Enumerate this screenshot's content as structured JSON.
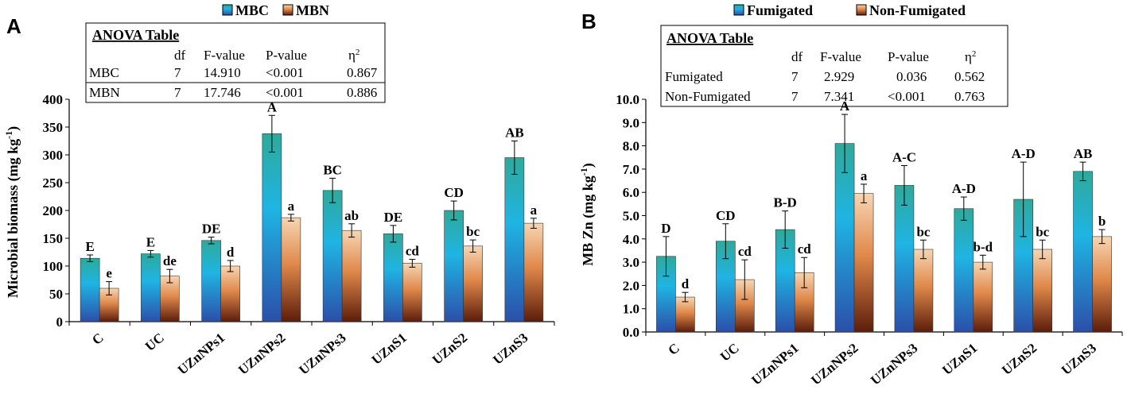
{
  "chart_data": [
    {
      "type": "bar",
      "panel": "A",
      "ylabel": "Microbial biomass (mg kg",
      "ylabel_sup": "-1",
      "ylabel_end": ")",
      "ylim": [
        0,
        400
      ],
      "yticks": [
        "0",
        "50",
        "100",
        "150",
        "200",
        "250",
        "300",
        "350",
        "400"
      ],
      "categories": [
        "C",
        "UC",
        "UZnNPs1",
        "UZnNPs2",
        "UZnNPs3",
        "UZnS1",
        "UZnS2",
        "UZnS3"
      ],
      "series": [
        {
          "name": "MBC",
          "values": [
            114,
            122,
            146,
            338,
            236,
            158,
            200,
            295
          ],
          "errors": [
            6,
            6,
            6,
            33,
            22,
            15,
            17,
            30
          ],
          "labels": [
            "E",
            "E",
            "DE",
            "A",
            "BC",
            "DE",
            "CD",
            "AB"
          ]
        },
        {
          "name": "MBN",
          "values": [
            60,
            82,
            100,
            187,
            164,
            105,
            136,
            177
          ],
          "errors": [
            12,
            12,
            10,
            6,
            12,
            7,
            11,
            9
          ],
          "labels": [
            "e",
            "de",
            "d",
            "a",
            "ab",
            "cd",
            "bc",
            "a"
          ]
        }
      ],
      "anova": {
        "title": "ANOVA Table",
        "headers": [
          "df",
          "F-value",
          "P-value",
          "η"
        ],
        "header_sup": "2",
        "rows": [
          {
            "name": "MBC",
            "df": "7",
            "f": "14.910",
            "p": "<0.001",
            "eta": "0.867"
          },
          {
            "name": "MBN",
            "df": "7",
            "f": "17.746",
            "p": "<0.001",
            "eta": "0.886"
          }
        ]
      }
    },
    {
      "type": "bar",
      "panel": "B",
      "ylabel": "MB Zn (mg kg",
      "ylabel_sup": "-1",
      "ylabel_end": ")",
      "ylim": [
        0,
        10
      ],
      "yticks": [
        "0.0",
        "1.0",
        "2.0",
        "3.0",
        "4.0",
        "5.0",
        "6.0",
        "7.0",
        "8.0",
        "9.0",
        "10.0"
      ],
      "categories": [
        "C",
        "UC",
        "UZnNPs1",
        "UZnNPs2",
        "UZnNPs3",
        "UZnS1",
        "UZnS2",
        "UZnS3"
      ],
      "series": [
        {
          "name": "Fumigated",
          "values": [
            3.25,
            3.9,
            4.4,
            8.1,
            6.3,
            5.3,
            5.7,
            6.9
          ],
          "errors": [
            0.85,
            0.75,
            0.8,
            1.25,
            0.85,
            0.5,
            1.6,
            0.4
          ],
          "labels": [
            "D",
            "CD",
            "B-D",
            "A",
            "A-C",
            "A-D",
            "A-D",
            "AB"
          ]
        },
        {
          "name": "Non-Fumigated",
          "values": [
            1.5,
            2.25,
            2.55,
            5.95,
            3.55,
            3.0,
            3.55,
            4.1
          ],
          "errors": [
            0.2,
            0.85,
            0.65,
            0.4,
            0.4,
            0.3,
            0.4,
            0.3
          ],
          "labels": [
            "d",
            "cd",
            "cd",
            "a",
            "bc",
            "b-d",
            "bc",
            "b"
          ]
        }
      ],
      "anova": {
        "title": "ANOVA Table",
        "headers": [
          "df",
          "F-value",
          "P-value",
          "η"
        ],
        "header_sup": "2",
        "rows": [
          {
            "name": "Fumigated",
            "df": "7",
            "f": "2.929",
            "p": "0.036",
            "eta": "0.562"
          },
          {
            "name": "Non-Fumigated",
            "df": "7",
            "f": "7.341",
            "p": "<0.001",
            "eta": "0.763"
          }
        ]
      }
    }
  ]
}
